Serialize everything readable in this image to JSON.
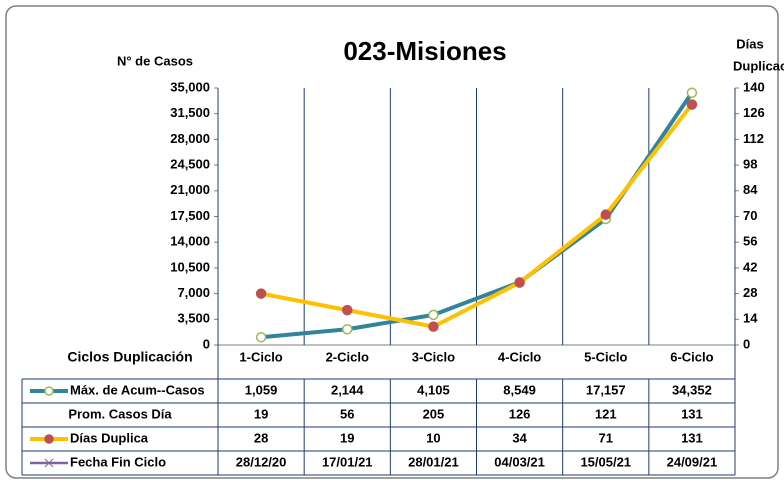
{
  "chart_data": {
    "type": "line",
    "title": "023-Misiones",
    "y_label": "N° de Casos",
    "y2_label": [
      "Días",
      "Duplicación"
    ],
    "table_header": "Ciclos Duplicación",
    "categories": [
      "1-Ciclo",
      "2-Ciclo",
      "3-Ciclo",
      "4-Ciclo",
      "5-Ciclo",
      "6-Ciclo"
    ],
    "ylim": [
      0,
      35000
    ],
    "yticks": [
      0,
      {
        "value": 3500,
        "label": "3,500"
      },
      {
        "value": 7000,
        "label": "7,000"
      },
      {
        "value": 10500,
        "label": "10,500"
      },
      {
        "value": 14000,
        "label": "14,000"
      },
      {
        "value": 17500,
        "label": "17,500"
      },
      {
        "value": 21000,
        "label": "21,000"
      },
      {
        "value": 24500,
        "label": "24,500"
      },
      {
        "value": 28000,
        "label": "28,000"
      },
      {
        "value": 31500,
        "label": "31,500"
      },
      {
        "value": 35000,
        "label": "35,000"
      }
    ],
    "y2lim": [
      0,
      140
    ],
    "y2ticks": [
      0,
      14,
      28,
      42,
      56,
      70,
      84,
      98,
      112,
      126,
      140
    ],
    "grid": true,
    "series": [
      {
        "name": "Máx. de Acum--Casos",
        "color": "#31849b",
        "marker_color": "#9bbb59",
        "axis": "y",
        "values": [
          1059,
          2144,
          4105,
          8549,
          17157,
          34352
        ],
        "value_labels": [
          "1,059",
          "2,144",
          "4,105",
          "8,549",
          "17,157",
          "34,352"
        ]
      },
      {
        "name": "Prom. Casos Día",
        "values": [
          19,
          56,
          205,
          126,
          121,
          131
        ]
      },
      {
        "name": "Días Duplica",
        "color": "#ffc000",
        "marker_color": "#c0504d",
        "axis": "y2",
        "values": [
          28,
          19,
          10,
          34,
          71,
          131
        ]
      },
      {
        "name": "Fecha Fin Ciclo",
        "color": "#8064a2",
        "values": [
          "28/12/20",
          "17/01/21",
          "28/01/21",
          "04/03/21",
          "15/05/21",
          "24/09/21"
        ]
      }
    ]
  }
}
